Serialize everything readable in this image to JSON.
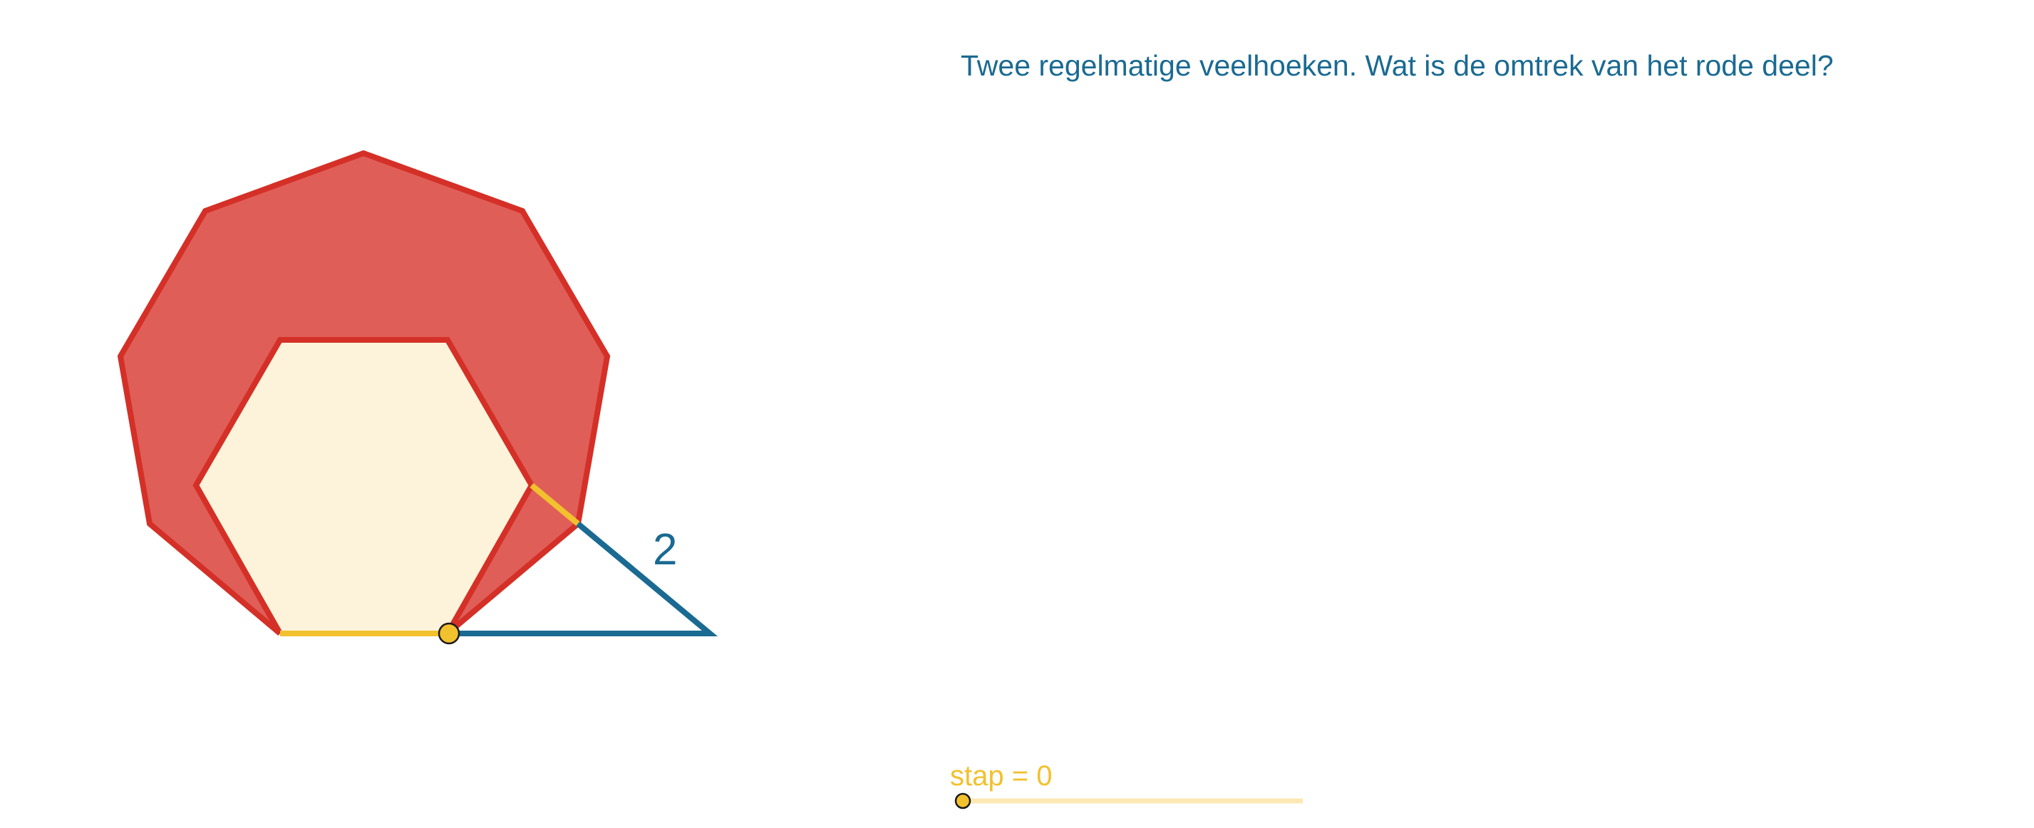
{
  "question": {
    "text": "Twee regelmatige veelhoeken. Wat is de omtrek van het rode deel?"
  },
  "figure": {
    "outer_polygon_sides": 9,
    "inner_polygon_sides": 6,
    "side_length_label": "2"
  },
  "slider": {
    "label": "stap = 0",
    "variable": "stap",
    "value": 0
  },
  "colors": {
    "red_fill": "#e05e58",
    "red_stroke": "#d43027",
    "hexagon_fill": "#fdf3da",
    "yellow": "#f2c12e",
    "blue": "#1a6a92",
    "question_text": "#1a6a92",
    "slider_track": "#fbe8b4"
  }
}
